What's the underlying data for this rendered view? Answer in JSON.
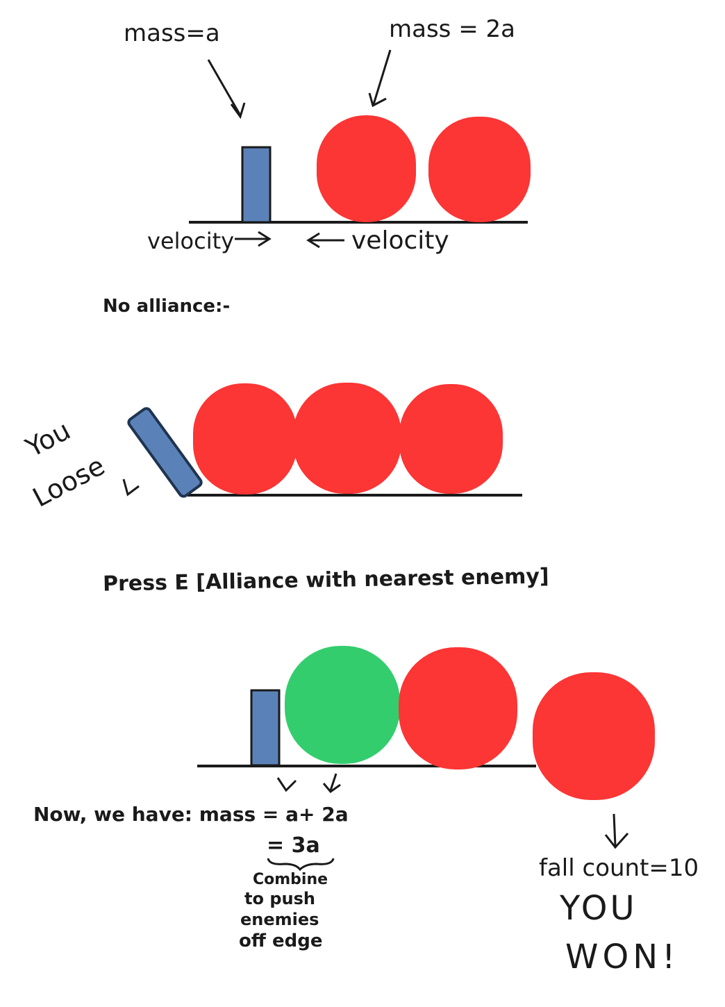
{
  "panel1": {
    "mass_small_label": "mass=a",
    "mass_big_label": "mass = 2a",
    "velocity_left_label": "velocity",
    "velocity_right_label": "velocity"
  },
  "panel2": {
    "heading": "No alliance:-",
    "lose_line1": "You",
    "lose_line2": "Loose"
  },
  "panel3": {
    "heading": "Press E [Alliance with nearest enemy]",
    "mass_equation": "Now, we have: mass = a+ 2a",
    "mass_result": "= 3a",
    "combine_line1": "Combine",
    "combine_line2": "to push",
    "combine_line3": "enemies",
    "combine_line4": "off edge",
    "fall_count": "fall count=10",
    "win_line1": "YOU",
    "win_line2": "WON!"
  },
  "colors": {
    "player": "#5b82b8",
    "player_outline": "#1f3450",
    "enemy": "#fc3535",
    "ally": "#34cd6e",
    "ground": "#1a1a1a"
  },
  "icons": [
    "arrow-down-icon",
    "arrow-right-icon",
    "arrow-left-icon",
    "brace-icon"
  ]
}
